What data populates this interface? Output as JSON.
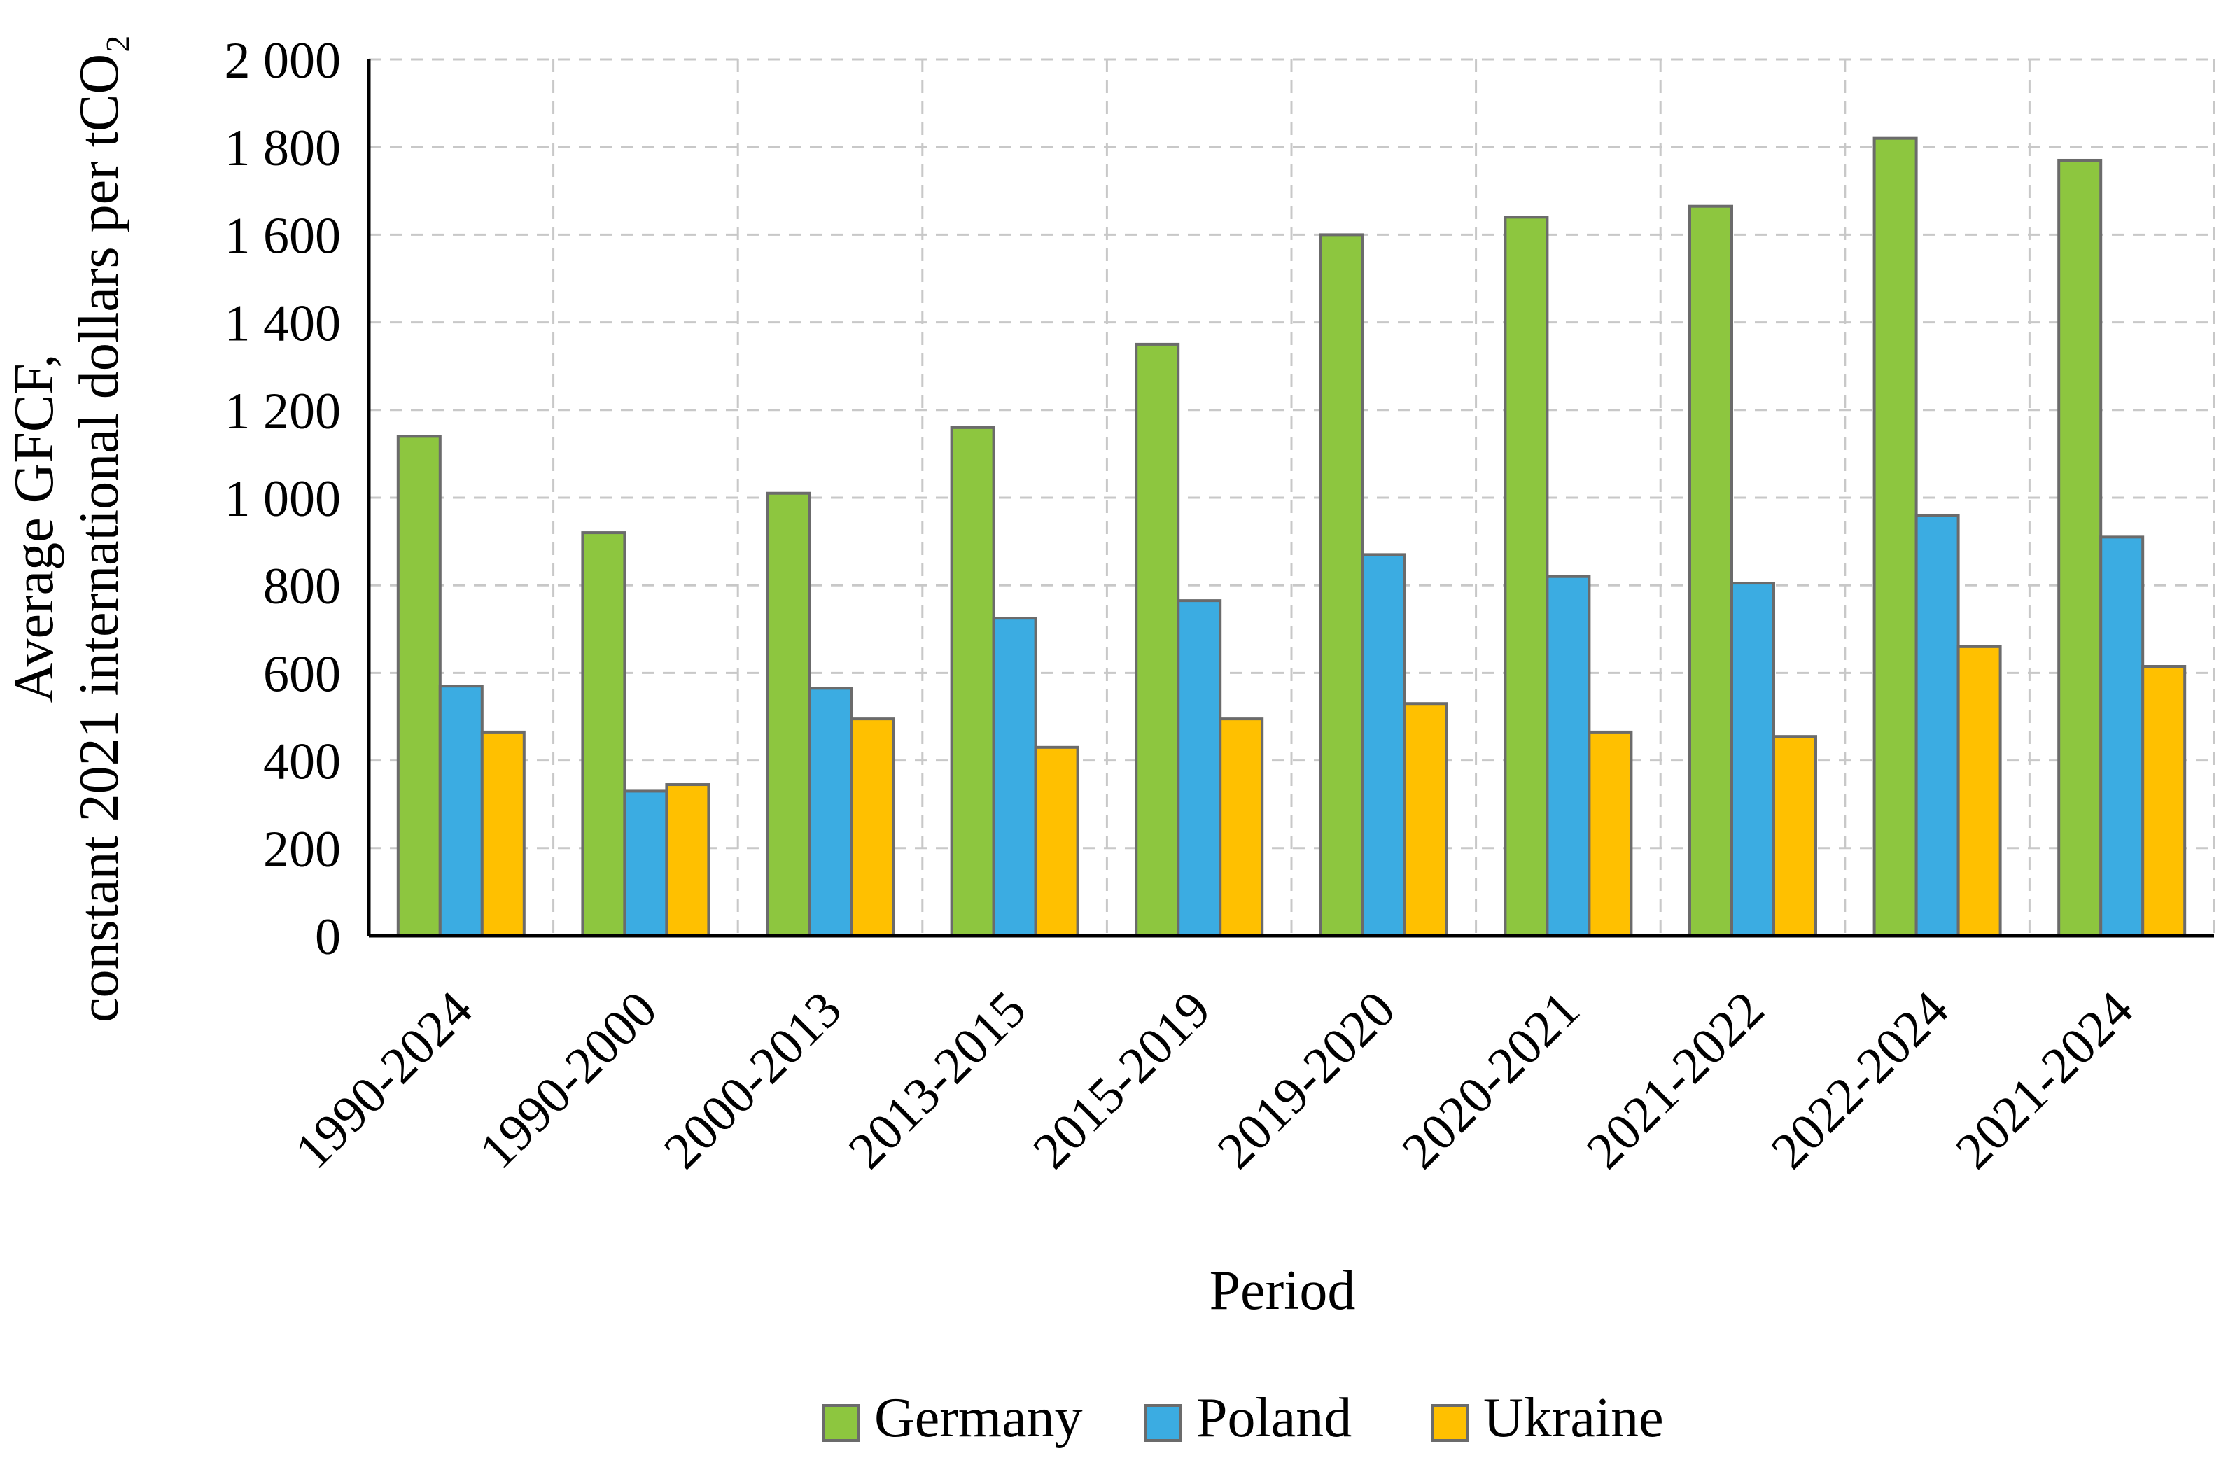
{
  "chart_data": {
    "type": "bar",
    "title": "",
    "xlabel": "Period",
    "ylabel_line1": "Average GFCF,",
    "ylabel_line2": "constant 2021 international dollars per tCO₂",
    "ylim": [
      0,
      2000
    ],
    "yticks": [
      0,
      200,
      400,
      600,
      800,
      1000,
      1200,
      1400,
      1600,
      1800,
      2000
    ],
    "ytick_labels": [
      "0",
      "200",
      "400",
      "600",
      "800",
      "1 000",
      "1 200",
      "1 400",
      "1 600",
      "1 800",
      "2 000"
    ],
    "grid": true,
    "legend_position": "bottom",
    "categories": [
      "1990-2024",
      "1990-2000",
      "2000-2013",
      "2013-2015",
      "2015-2019",
      "2019-2020",
      "2020-2021",
      "2021-2022",
      "2022-2024",
      "2021-2024"
    ],
    "series": [
      {
        "name": "Germany",
        "color": "#8dc63f",
        "values": [
          1140,
          920,
          1010,
          1160,
          1350,
          1600,
          1640,
          1665,
          1820,
          1770
        ]
      },
      {
        "name": "Poland",
        "color": "#3bace2",
        "values": [
          570,
          330,
          565,
          725,
          765,
          870,
          820,
          805,
          960,
          910
        ]
      },
      {
        "name": "Ukraine",
        "color": "#ffc000",
        "values": [
          465,
          345,
          495,
          430,
          495,
          530,
          465,
          455,
          660,
          615
        ]
      }
    ]
  }
}
